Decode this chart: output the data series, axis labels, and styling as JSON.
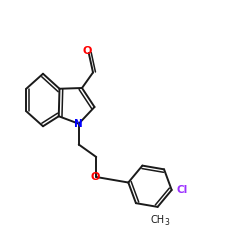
{
  "bg_color": "#ffffff",
  "bond_color": "#1a1a1a",
  "N_color": "#0000ff",
  "O_color": "#ff0000",
  "Cl_color": "#9B30FF",
  "figsize": [
    2.5,
    2.5
  ],
  "dpi": 100,
  "xlim": [
    0,
    10
  ],
  "ylim": [
    0,
    10
  ],
  "lw": 1.4,
  "lw_inner": 1.1
}
